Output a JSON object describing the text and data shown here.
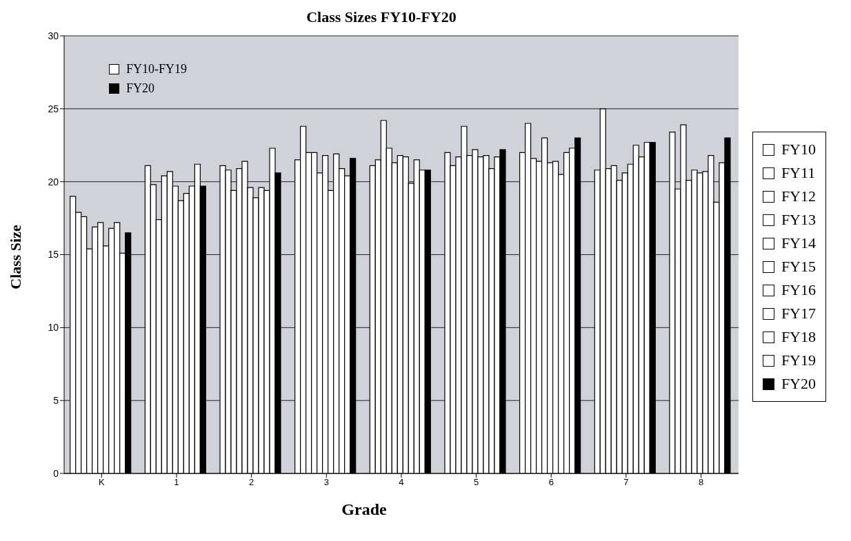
{
  "chart_data": {
    "type": "bar",
    "title": "Class Sizes FY10-FY20",
    "xlabel": "Grade",
    "ylabel": "Class Size",
    "categories": [
      "K",
      "1",
      "2",
      "3",
      "4",
      "5",
      "6",
      "7",
      "8"
    ],
    "series": [
      {
        "name": "FY10",
        "color": "#ffffff",
        "values": [
          19.0,
          21.1,
          21.1,
          21.5,
          21.1,
          22.0,
          22.0,
          20.8,
          23.4
        ]
      },
      {
        "name": "FY11",
        "color": "#ffffff",
        "values": [
          17.9,
          19.8,
          20.8,
          23.8,
          21.5,
          21.1,
          24.0,
          25.0,
          19.5
        ]
      },
      {
        "name": "FY12",
        "color": "#ffffff",
        "values": [
          17.6,
          17.4,
          19.4,
          22.0,
          24.2,
          21.7,
          21.6,
          20.9,
          23.9
        ]
      },
      {
        "name": "FY13",
        "color": "#ffffff",
        "values": [
          15.4,
          20.4,
          20.9,
          22.0,
          22.3,
          23.8,
          21.4,
          21.1,
          20.1
        ]
      },
      {
        "name": "FY14",
        "color": "#ffffff",
        "values": [
          16.9,
          20.7,
          21.4,
          20.6,
          21.3,
          21.8,
          23.0,
          20.1,
          20.8
        ]
      },
      {
        "name": "FY15",
        "color": "#ffffff",
        "values": [
          17.2,
          19.7,
          19.6,
          21.8,
          21.8,
          22.2,
          21.3,
          20.6,
          20.6
        ]
      },
      {
        "name": "FY16",
        "color": "#ffffff",
        "values": [
          15.6,
          18.7,
          18.9,
          19.4,
          21.7,
          21.7,
          21.4,
          21.2,
          20.7
        ]
      },
      {
        "name": "FY17",
        "color": "#ffffff",
        "values": [
          16.8,
          19.2,
          19.6,
          21.9,
          19.9,
          21.8,
          20.5,
          22.5,
          21.8
        ]
      },
      {
        "name": "FY18",
        "color": "#ffffff",
        "values": [
          17.2,
          19.7,
          19.4,
          20.9,
          21.5,
          20.9,
          22.0,
          21.7,
          18.6
        ]
      },
      {
        "name": "FY19",
        "color": "#ffffff",
        "values": [
          15.1,
          21.2,
          22.3,
          20.4,
          20.8,
          21.7,
          22.3,
          22.7,
          21.3
        ]
      },
      {
        "name": "FY20",
        "color": "#000000",
        "values": [
          16.5,
          19.7,
          20.6,
          21.6,
          20.8,
          22.2,
          23.0,
          22.7,
          23.0
        ]
      }
    ],
    "ylim": [
      0,
      30
    ],
    "yticks": [
      0,
      5,
      10,
      15,
      20,
      25,
      30
    ],
    "grid": "y",
    "legend": "right",
    "annotations": [
      "FY10-FY19",
      "FY20"
    ]
  }
}
